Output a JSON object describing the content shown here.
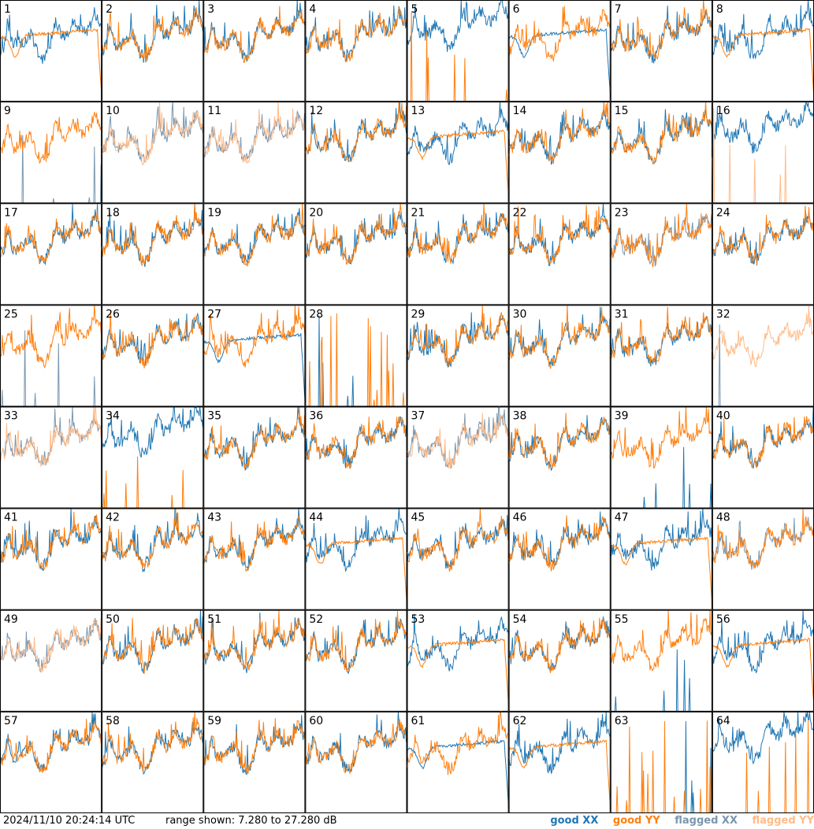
{
  "chart_data": {
    "type": "line",
    "panel_count": 64,
    "grid": "8x8",
    "panel_labels": [
      "1",
      "2",
      "3",
      "4",
      "5",
      "6",
      "7",
      "8",
      "9",
      "10",
      "11",
      "12",
      "13",
      "14",
      "15",
      "16",
      "17",
      "18",
      "19",
      "20",
      "21",
      "22",
      "23",
      "24",
      "25",
      "26",
      "27",
      "28",
      "29",
      "30",
      "31",
      "32",
      "33",
      "34",
      "35",
      "36",
      "37",
      "38",
      "39",
      "40",
      "41",
      "42",
      "43",
      "44",
      "45",
      "46",
      "47",
      "48",
      "49",
      "50",
      "51",
      "52",
      "53",
      "54",
      "55",
      "56",
      "57",
      "58",
      "59",
      "60",
      "61",
      "62",
      "63",
      "64"
    ],
    "ylim": [
      7.28,
      27.28
    ],
    "series": [
      {
        "name": "good XX",
        "color": "#1f77b4"
      },
      {
        "name": "good YY",
        "color": "#ff7f0e"
      },
      {
        "name": "flagged XX",
        "color": "#7a96b0"
      },
      {
        "name": "flagged YY",
        "color": "#ffbb88"
      }
    ],
    "panel_types": {
      "normal": [
        2,
        3,
        4,
        7,
        12,
        14,
        15,
        17,
        18,
        19,
        20,
        21,
        22,
        24,
        26,
        29,
        30,
        31,
        35,
        36,
        38,
        40,
        41,
        42,
        43,
        45,
        46,
        50,
        51,
        52,
        54,
        57,
        58,
        59,
        60
      ],
      "plateau": [
        1,
        6,
        8,
        13,
        27,
        44,
        47,
        53,
        56,
        61,
        62
      ],
      "x_spiky_low_y": [
        5,
        16,
        34,
        64
      ],
      "y_only_x_spikes": [
        9,
        25,
        39,
        55
      ],
      "flagged_x": [
        23,
        48
      ],
      "flagged_both": [
        10,
        11,
        33,
        37,
        49
      ],
      "flagged_y_only": [
        32
      ],
      "spikes_only": [
        28,
        63
      ]
    }
  },
  "footer": {
    "timestamp": "2024/11/10 20:24:14 UTC",
    "range_text": "range shown: 7.280 to 27.280 dB"
  },
  "legend": {
    "good_xx": "good XX",
    "good_yy": "good YY",
    "flagged_xx": "flagged XX",
    "flagged_yy": "flagged YY",
    "colors": {
      "good_xx": "#1f77b4",
      "good_yy": "#ff7f0e",
      "flagged_xx": "#7a96b0",
      "flagged_yy": "#ffbb88"
    }
  }
}
